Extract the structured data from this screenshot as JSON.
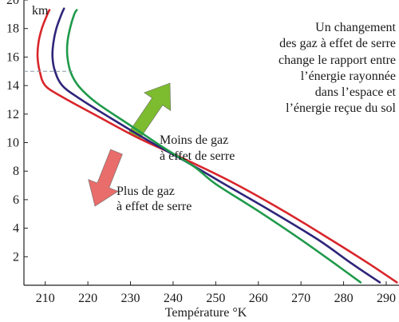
{
  "chart_data": {
    "type": "line",
    "title": "",
    "xlabel": "Température °K",
    "ylabel": "km",
    "xlim": [
      205,
      293
    ],
    "ylim": [
      0,
      20
    ],
    "x_ticks": [
      "210",
      "220",
      "230",
      "240",
      "250",
      "260",
      "270",
      "280",
      "290"
    ],
    "y_ticks": [
      "2",
      "4",
      "6",
      "8",
      "10",
      "12",
      "14",
      "16",
      "18",
      "20"
    ],
    "grid": false,
    "reference_line": {
      "y": 15,
      "style": "dashed"
    },
    "series": [
      {
        "color": "#d8262b",
        "points": [
          [
            292.5,
            0.2
          ],
          [
            286,
            1.5
          ],
          [
            277,
            3.2
          ],
          [
            266,
            5.2
          ],
          [
            254,
            7.2
          ],
          [
            243,
            8.8
          ],
          [
            232,
            10.3
          ],
          [
            222,
            11.9
          ],
          [
            214,
            13.2
          ],
          [
            210,
            14
          ],
          [
            208.7,
            15
          ],
          [
            208.2,
            16
          ],
          [
            208.4,
            17
          ],
          [
            209.2,
            18
          ],
          [
            210.5,
            19
          ],
          [
            211,
            19.3
          ]
        ]
      },
      {
        "color": "#2e2579",
        "points": [
          [
            288.5,
            0.2
          ],
          [
            282,
            1.5
          ],
          [
            274,
            3.2
          ],
          [
            263,
            5.2
          ],
          [
            252,
            7.1
          ],
          [
            244,
            8.5
          ],
          [
            235,
            10
          ],
          [
            226,
            11.6
          ],
          [
            218,
            13.1
          ],
          [
            214,
            14
          ],
          [
            212.3,
            15
          ],
          [
            211.7,
            16
          ],
          [
            211.9,
            17
          ],
          [
            212.6,
            18
          ],
          [
            213.8,
            19
          ],
          [
            214.4,
            19.4
          ]
        ]
      },
      {
        "color": "#1f9a4b",
        "points": [
          [
            284,
            0.2
          ],
          [
            278,
            1.5
          ],
          [
            270,
            3.2
          ],
          [
            260,
            5.2
          ],
          [
            250,
            7.1
          ],
          [
            245,
            8.3
          ],
          [
            238,
            9.6
          ],
          [
            230,
            11.2
          ],
          [
            222,
            12.8
          ],
          [
            218,
            13.9
          ],
          [
            216,
            14.9
          ],
          [
            215.2,
            16
          ],
          [
            215.2,
            17
          ],
          [
            215.8,
            18
          ],
          [
            216.8,
            19
          ],
          [
            217.4,
            19.3
          ]
        ]
      }
    ],
    "annotations": {
      "moins": [
        "Moins de gaz",
        "à effet de serre"
      ],
      "plus": [
        "Plus de gaz",
        "à effet de serre"
      ],
      "note": [
        "Un changement",
        "des gaz à effet de serre",
        "change le rapport entre",
        "l’énergie rayonnée",
        "dans l’espace et",
        "l’énergie reçue du sol"
      ]
    },
    "arrows": [
      {
        "name": "moins",
        "color": "#7dbb2f",
        "direction": "up-right"
      },
      {
        "name": "plus",
        "color": "#e86d6b",
        "direction": "down-left"
      }
    ]
  }
}
